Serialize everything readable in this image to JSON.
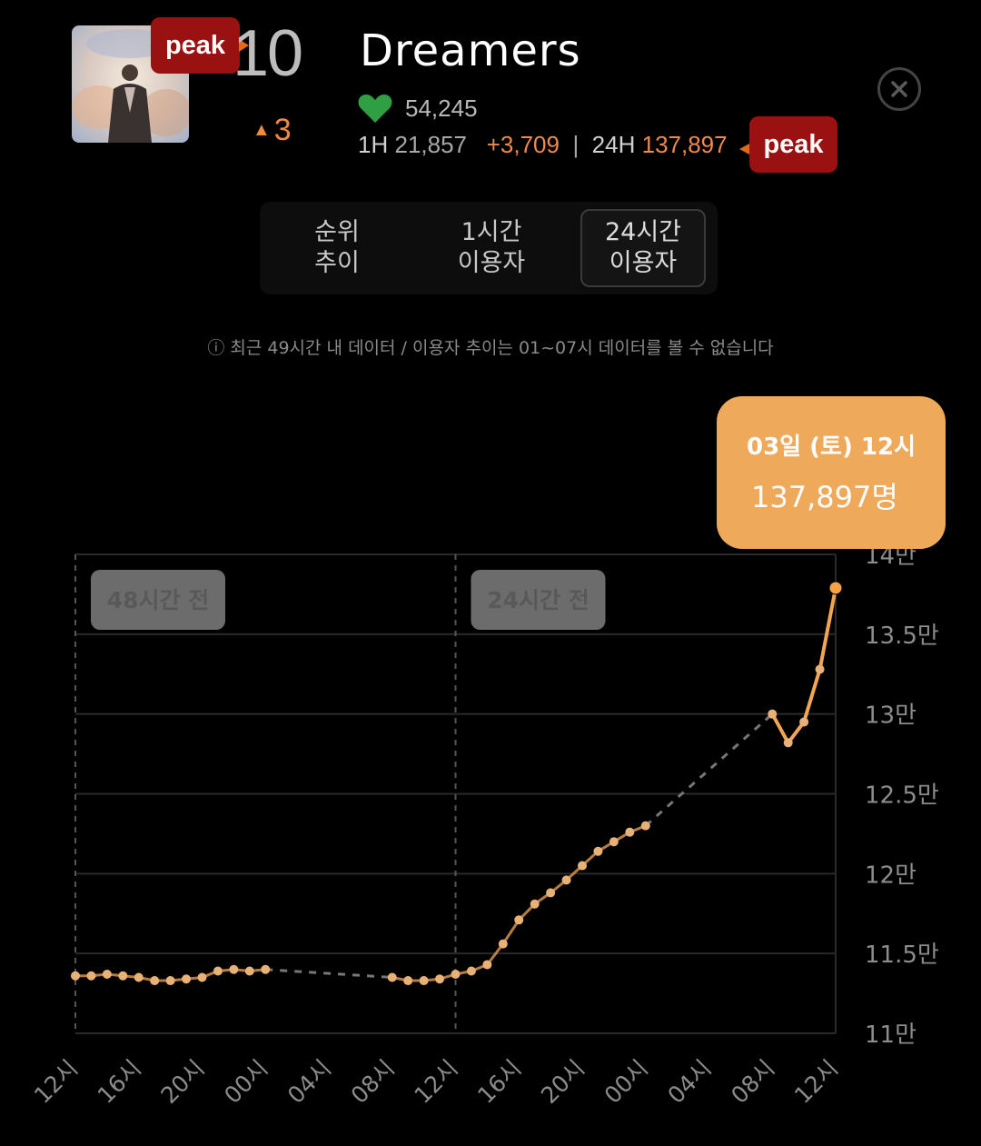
{
  "song": {
    "title": "Dreamers",
    "rank": "10",
    "rank_change": "3",
    "likes": "54,245",
    "peak_label": "peak",
    "stats": {
      "h1_label": "1H",
      "h1_value": "21,857",
      "h1_delta": "+3,709",
      "separator": "|",
      "h24_label": "24H",
      "h24_value": "137,897"
    }
  },
  "tabs": [
    {
      "line1": "순위",
      "line2": "추이",
      "active": false
    },
    {
      "line1": "1시간",
      "line2": "이용자",
      "active": false
    },
    {
      "line1": "24시간",
      "line2": "이용자",
      "active": true
    }
  ],
  "notice": "ⓘ 최근 49시간 내 데이터 / 이용자 추이는 01~07시 데이터를 볼 수 없습니다",
  "colors": {
    "accent": "#f2a553",
    "peak_red": "#9a1111",
    "heart": "#2ea043"
  },
  "icons": {
    "heart": "heart-icon",
    "close": "close-icon",
    "info": "info-icon"
  },
  "tooltip": {
    "date": "03일 (토) 12시",
    "value": "137,897명"
  },
  "chart_data": {
    "type": "line",
    "y_unit": "명",
    "ylim": [
      110000,
      140000
    ],
    "y_ticks": [
      {
        "value": 110000,
        "label": "11만"
      },
      {
        "value": 115000,
        "label": "11.5만"
      },
      {
        "value": 120000,
        "label": "12만"
      },
      {
        "value": 125000,
        "label": "12.5만"
      },
      {
        "value": 130000,
        "label": "13만"
      },
      {
        "value": 135000,
        "label": "13.5만"
      },
      {
        "value": 140000,
        "label": "14만"
      }
    ],
    "x_ticks": [
      "12시",
      "16시",
      "20시",
      "00시",
      "04시",
      "08시",
      "12시",
      "16시",
      "20시",
      "00시",
      "04시",
      "08시",
      "12시"
    ],
    "x_range_hours": [
      0,
      48
    ],
    "period_markers": [
      {
        "hour": 0,
        "label": "48시간 전"
      },
      {
        "hour": 24,
        "label": "24시간 전"
      }
    ],
    "segments": [
      [
        [
          0,
          113600
        ],
        [
          1,
          113600
        ],
        [
          2,
          113700
        ],
        [
          3,
          113600
        ],
        [
          4,
          113500
        ],
        [
          5,
          113300
        ],
        [
          6,
          113300
        ],
        [
          7,
          113400
        ],
        [
          8,
          113500
        ],
        [
          9,
          113900
        ],
        [
          10,
          114000
        ],
        [
          11,
          113900
        ],
        [
          12,
          114000
        ]
      ],
      [
        [
          20,
          113500
        ],
        [
          21,
          113300
        ],
        [
          22,
          113300
        ],
        [
          23,
          113400
        ],
        [
          24,
          113700
        ],
        [
          25,
          113900
        ],
        [
          26,
          114300
        ],
        [
          27,
          115600
        ],
        [
          28,
          117100
        ],
        [
          29,
          118100
        ],
        [
          30,
          118800
        ],
        [
          31,
          119600
        ],
        [
          32,
          120500
        ],
        [
          33,
          121400
        ],
        [
          34,
          122000
        ],
        [
          35,
          122600
        ],
        [
          36,
          123000
        ]
      ],
      [
        [
          44,
          130000
        ],
        [
          45,
          128200
        ],
        [
          46,
          129500
        ],
        [
          47,
          132800
        ],
        [
          48,
          137897
        ]
      ]
    ],
    "gap_lines": [
      [
        [
          12,
          114000
        ],
        [
          20,
          113500
        ]
      ],
      [
        [
          36,
          123000
        ],
        [
          44,
          130000
        ]
      ]
    ],
    "solid_range_hours": [
      44,
      48
    ],
    "highlight": {
      "hour": 48,
      "value": 137897
    }
  }
}
